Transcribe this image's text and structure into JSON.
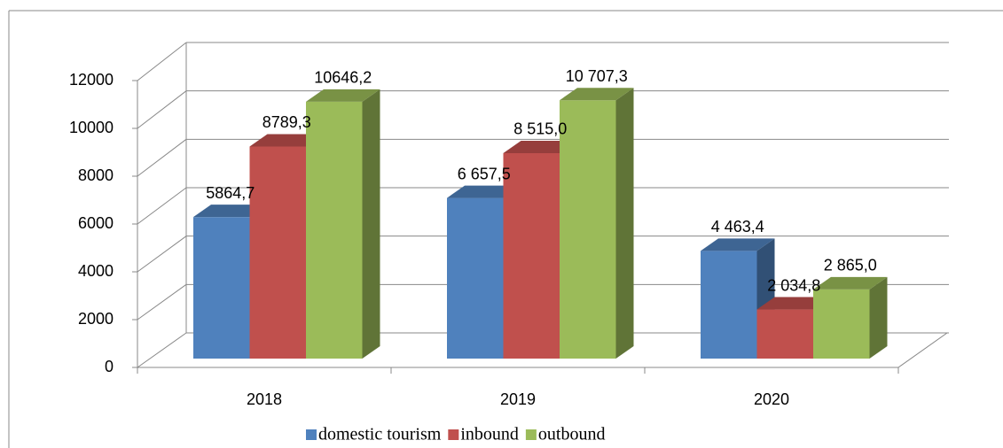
{
  "chart_data": {
    "type": "bar3d",
    "categories": [
      "2018",
      "2019",
      "2020"
    ],
    "series": [
      {
        "name": "domestic tourism",
        "color": "#4f81bd",
        "values": [
          5864.7,
          6657.5,
          4463.4
        ],
        "value_labels": [
          "5864,7",
          "6 657,5",
          "4 463,4"
        ]
      },
      {
        "name": "inbound",
        "color": "#c0504d",
        "values": [
          8789.3,
          8515.0,
          2034.8
        ],
        "value_labels": [
          "8789,3",
          "8 515,0",
          "2 034,8"
        ]
      },
      {
        "name": "outbound",
        "color": "#9bbb59",
        "values": [
          10646.2,
          10707.3,
          2865.0
        ],
        "value_labels": [
          "10646,2",
          "10 707,3",
          "2 865,0"
        ]
      }
    ],
    "ylim": [
      0,
      12000
    ],
    "yticks": [
      0,
      2000,
      4000,
      6000,
      8000,
      10000,
      12000
    ],
    "grid": true,
    "legend": "bottom"
  }
}
